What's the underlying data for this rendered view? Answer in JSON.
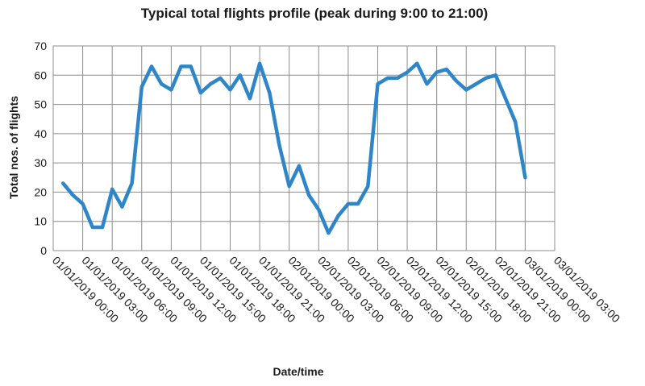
{
  "chart_data": {
    "type": "line",
    "title": "Typical total flights profile (peak during 9:00 to 21:00)",
    "xlabel": "Date/time",
    "ylabel": "Total nos. of flights",
    "ylim": [
      0,
      70
    ],
    "yticks": [
      0,
      10,
      20,
      30,
      40,
      50,
      60,
      70
    ],
    "xticks": [
      "01/01/2019 00:00",
      "01/01/2019 03:00",
      "01/01/2019 06:00",
      "01/01/2019 09:00",
      "01/01/2019 12:00",
      "01/01/2019 15:00",
      "01/01/2019 18:00",
      "01/01/2019 21:00",
      "02/01/2019 00:00",
      "02/01/2019 03:00",
      "02/01/2019 06:00",
      "02/01/2019 09:00",
      "02/01/2019 12:00",
      "02/01/2019 15:00",
      "02/01/2019 18:00",
      "02/01/2019 21:00",
      "03/01/2019 00:00",
      "03/01/2019 03:00"
    ],
    "grid": true,
    "legend": "none",
    "series": [
      {
        "color": "#2E86C8",
        "points": [
          {
            "x": "01/01/2019 01:00",
            "y": 23
          },
          {
            "x": "01/01/2019 02:00",
            "y": 19
          },
          {
            "x": "01/01/2019 03:00",
            "y": 16
          },
          {
            "x": "01/01/2019 04:00",
            "y": 8
          },
          {
            "x": "01/01/2019 05:00",
            "y": 8
          },
          {
            "x": "01/01/2019 06:00",
            "y": 21
          },
          {
            "x": "01/01/2019 07:00",
            "y": 15
          },
          {
            "x": "01/01/2019 08:00",
            "y": 23
          },
          {
            "x": "01/01/2019 09:00",
            "y": 56
          },
          {
            "x": "01/01/2019 10:00",
            "y": 63
          },
          {
            "x": "01/01/2019 11:00",
            "y": 57
          },
          {
            "x": "01/01/2019 12:00",
            "y": 55
          },
          {
            "x": "01/01/2019 13:00",
            "y": 63
          },
          {
            "x": "01/01/2019 14:00",
            "y": 63
          },
          {
            "x": "01/01/2019 15:00",
            "y": 54
          },
          {
            "x": "01/01/2019 16:00",
            "y": 57
          },
          {
            "x": "01/01/2019 17:00",
            "y": 59
          },
          {
            "x": "01/01/2019 18:00",
            "y": 55
          },
          {
            "x": "01/01/2019 19:00",
            "y": 60
          },
          {
            "x": "01/01/2019 20:00",
            "y": 52
          },
          {
            "x": "01/01/2019 21:00",
            "y": 64
          },
          {
            "x": "01/01/2019 22:00",
            "y": 54
          },
          {
            "x": "01/01/2019 23:00",
            "y": 36
          },
          {
            "x": "02/01/2019 00:00",
            "y": 22
          },
          {
            "x": "02/01/2019 01:00",
            "y": 29
          },
          {
            "x": "02/01/2019 02:00",
            "y": 19
          },
          {
            "x": "02/01/2019 03:00",
            "y": 14
          },
          {
            "x": "02/01/2019 04:00",
            "y": 6
          },
          {
            "x": "02/01/2019 05:00",
            "y": 12
          },
          {
            "x": "02/01/2019 06:00",
            "y": 16
          },
          {
            "x": "02/01/2019 07:00",
            "y": 16
          },
          {
            "x": "02/01/2019 08:00",
            "y": 22
          },
          {
            "x": "02/01/2019 09:00",
            "y": 57
          },
          {
            "x": "02/01/2019 10:00",
            "y": 59
          },
          {
            "x": "02/01/2019 11:00",
            "y": 59
          },
          {
            "x": "02/01/2019 12:00",
            "y": 61
          },
          {
            "x": "02/01/2019 13:00",
            "y": 64
          },
          {
            "x": "02/01/2019 14:00",
            "y": 57
          },
          {
            "x": "02/01/2019 15:00",
            "y": 61
          },
          {
            "x": "02/01/2019 16:00",
            "y": 62
          },
          {
            "x": "02/01/2019 17:00",
            "y": 58
          },
          {
            "x": "02/01/2019 18:00",
            "y": 55
          },
          {
            "x": "02/01/2019 19:00",
            "y": 57
          },
          {
            "x": "02/01/2019 20:00",
            "y": 59
          },
          {
            "x": "02/01/2019 21:00",
            "y": 60
          },
          {
            "x": "02/01/2019 22:00",
            "y": 52
          },
          {
            "x": "02/01/2019 23:00",
            "y": 44
          },
          {
            "x": "03/01/2019 00:00",
            "y": 25
          }
        ]
      }
    ]
  }
}
